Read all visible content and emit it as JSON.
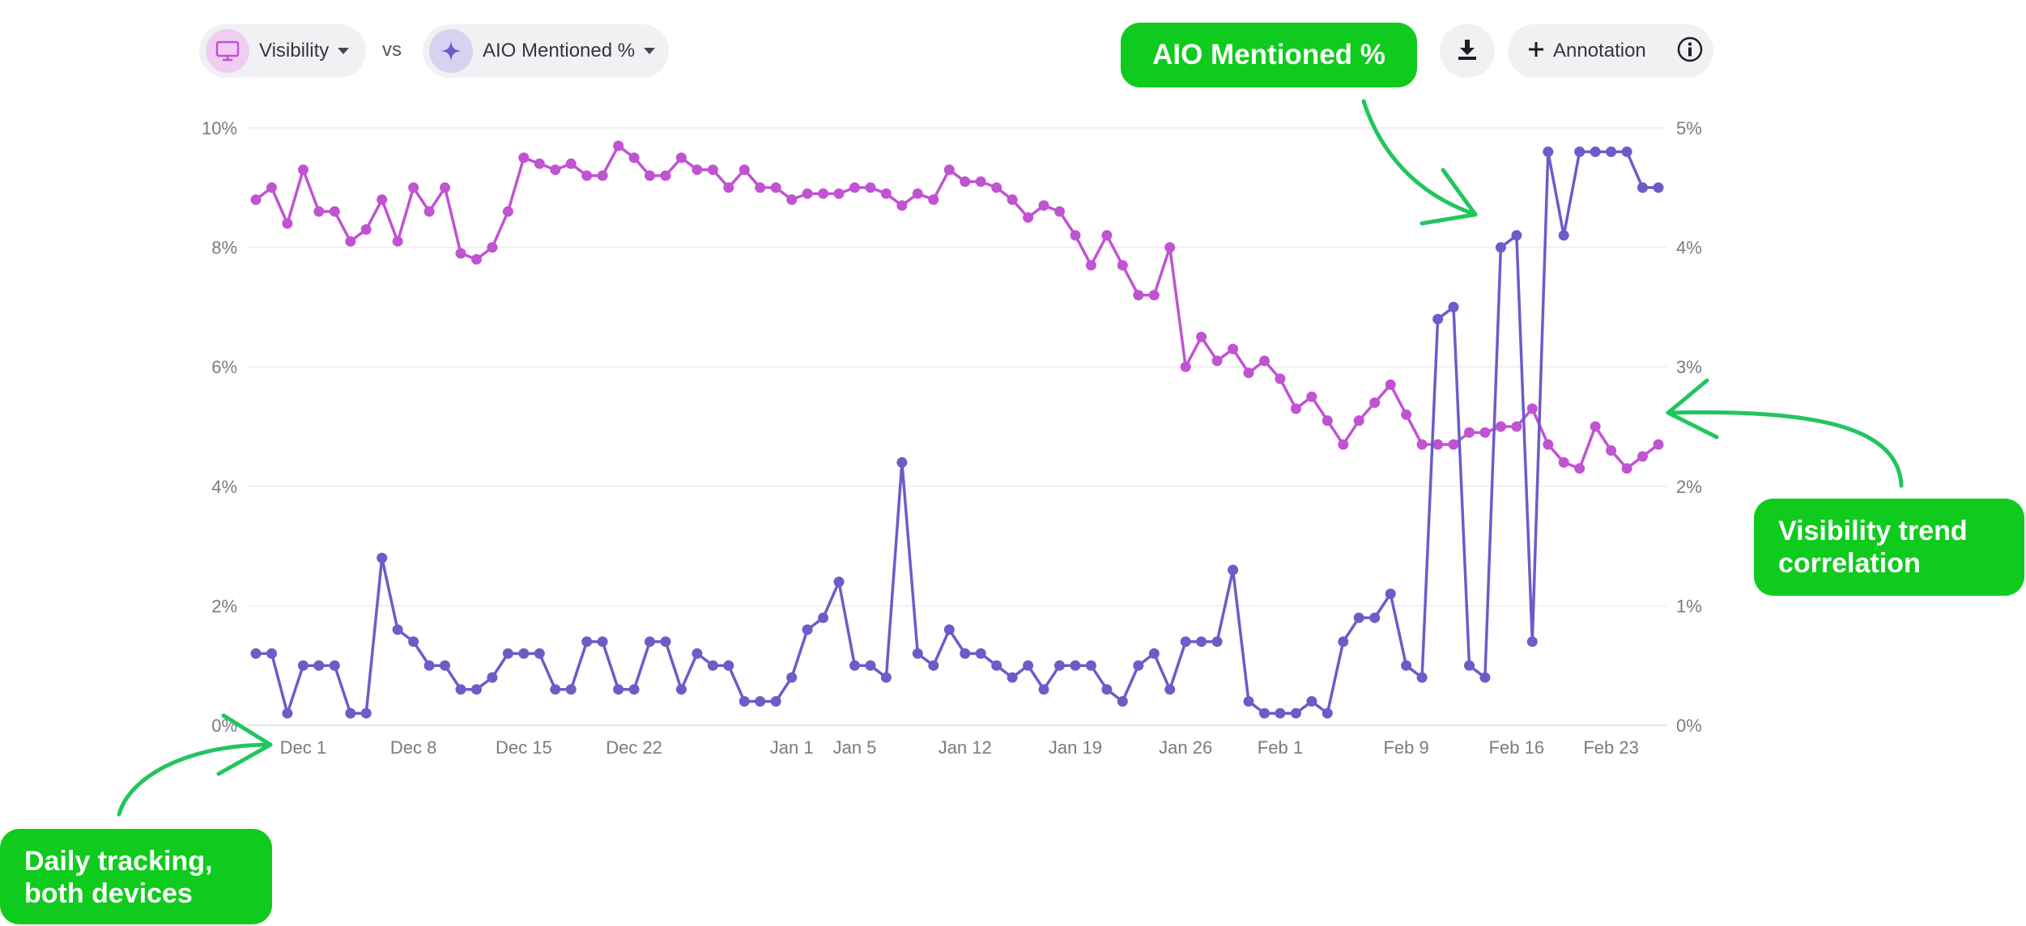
{
  "toolbar": {
    "metric_a": {
      "label": "Visibility",
      "icon": "monitor-icon",
      "color": "#c053d2"
    },
    "vs_label": "vs",
    "metric_b": {
      "label": "AIO Mentioned %",
      "icon": "sparkle-icon",
      "color": "#6c5cc8"
    },
    "download_icon": "download-icon",
    "annotation_label": "Annotation",
    "annotation_icon": "plus-icon",
    "info_icon": "info-icon"
  },
  "callouts": {
    "aio": "AIO Mentioned %",
    "visibility_line1": "Visibility trend",
    "visibility_line2": "correlation",
    "daily_line1": "Daily tracking,",
    "daily_line2": "both devices",
    "color": "#0fcb1d"
  },
  "chart_data": {
    "type": "line",
    "x_labels": [
      "Dec 1",
      "Dec 8",
      "Dec 15",
      "Dec 22",
      "Jan 1",
      "Jan 5",
      "Jan 12",
      "Jan 19",
      "Jan 26",
      "Feb 1",
      "Feb 9",
      "Feb 16",
      "Feb 23"
    ],
    "x_label_index": [
      3,
      10,
      17,
      24,
      34,
      38,
      45,
      52,
      59,
      65,
      73,
      80,
      86
    ],
    "y_left": {
      "ticks": [
        "0%",
        "2%",
        "4%",
        "6%",
        "8%",
        "10%"
      ],
      "min": 0,
      "max": 10
    },
    "y_right": {
      "ticks": [
        "0%",
        "1%",
        "2%",
        "3%",
        "4%",
        "5%"
      ],
      "min": 0,
      "max": 5
    },
    "grid": true,
    "series": [
      {
        "axis": "left",
        "color": "#c053d2",
        "values": [
          8.8,
          9.0,
          8.4,
          9.3,
          8.6,
          8.6,
          8.1,
          8.3,
          8.8,
          8.1,
          9.0,
          8.6,
          9.0,
          7.9,
          7.8,
          8.0,
          8.6,
          9.5,
          9.4,
          9.3,
          9.4,
          9.2,
          9.2,
          9.7,
          9.5,
          9.2,
          9.2,
          9.5,
          9.3,
          9.3,
          9.0,
          9.3,
          9.0,
          9.0,
          8.8,
          8.9,
          8.9,
          8.9,
          9.0,
          9.0,
          8.9,
          8.7,
          8.9,
          8.8,
          9.3,
          9.1,
          9.1,
          9.0,
          8.8,
          8.5,
          8.7,
          8.6,
          8.2,
          7.7,
          8.2,
          7.7,
          7.2,
          7.2,
          8.0,
          6.0,
          6.5,
          6.1,
          6.3,
          5.9,
          6.1,
          5.8,
          5.3,
          5.5,
          5.1,
          4.7,
          5.1,
          5.4,
          5.7,
          5.2,
          4.7,
          4.7,
          4.7,
          4.9,
          4.9,
          5.0,
          5.0,
          5.3,
          4.7,
          4.4,
          4.3,
          5.0,
          4.6,
          4.3,
          4.5,
          4.7
        ]
      },
      {
        "axis": "right",
        "color": "#6c5cc8",
        "values": [
          0.6,
          0.6,
          0.1,
          0.5,
          0.5,
          0.5,
          0.1,
          0.1,
          1.4,
          0.8,
          0.7,
          0.5,
          0.5,
          0.3,
          0.3,
          0.4,
          0.6,
          0.6,
          0.6,
          0.3,
          0.3,
          0.7,
          0.7,
          0.3,
          0.3,
          0.7,
          0.7,
          0.3,
          0.6,
          0.5,
          0.5,
          0.2,
          0.2,
          0.2,
          0.4,
          0.8,
          0.9,
          1.2,
          0.5,
          0.5,
          0.4,
          2.2,
          0.6,
          0.5,
          0.8,
          0.6,
          0.6,
          0.5,
          0.4,
          0.5,
          0.3,
          0.5,
          0.5,
          0.5,
          0.3,
          0.2,
          0.5,
          0.6,
          0.3,
          0.7,
          0.7,
          0.7,
          1.3,
          0.2,
          0.1,
          0.1,
          0.1,
          0.2,
          0.1,
          0.7,
          0.9,
          0.9,
          1.1,
          0.5,
          0.4,
          3.4,
          3.5,
          0.5,
          0.4,
          4.0,
          4.1,
          0.7,
          4.8,
          4.1,
          4.8,
          4.8,
          4.8,
          4.8,
          4.5,
          4.5
        ]
      }
    ]
  }
}
